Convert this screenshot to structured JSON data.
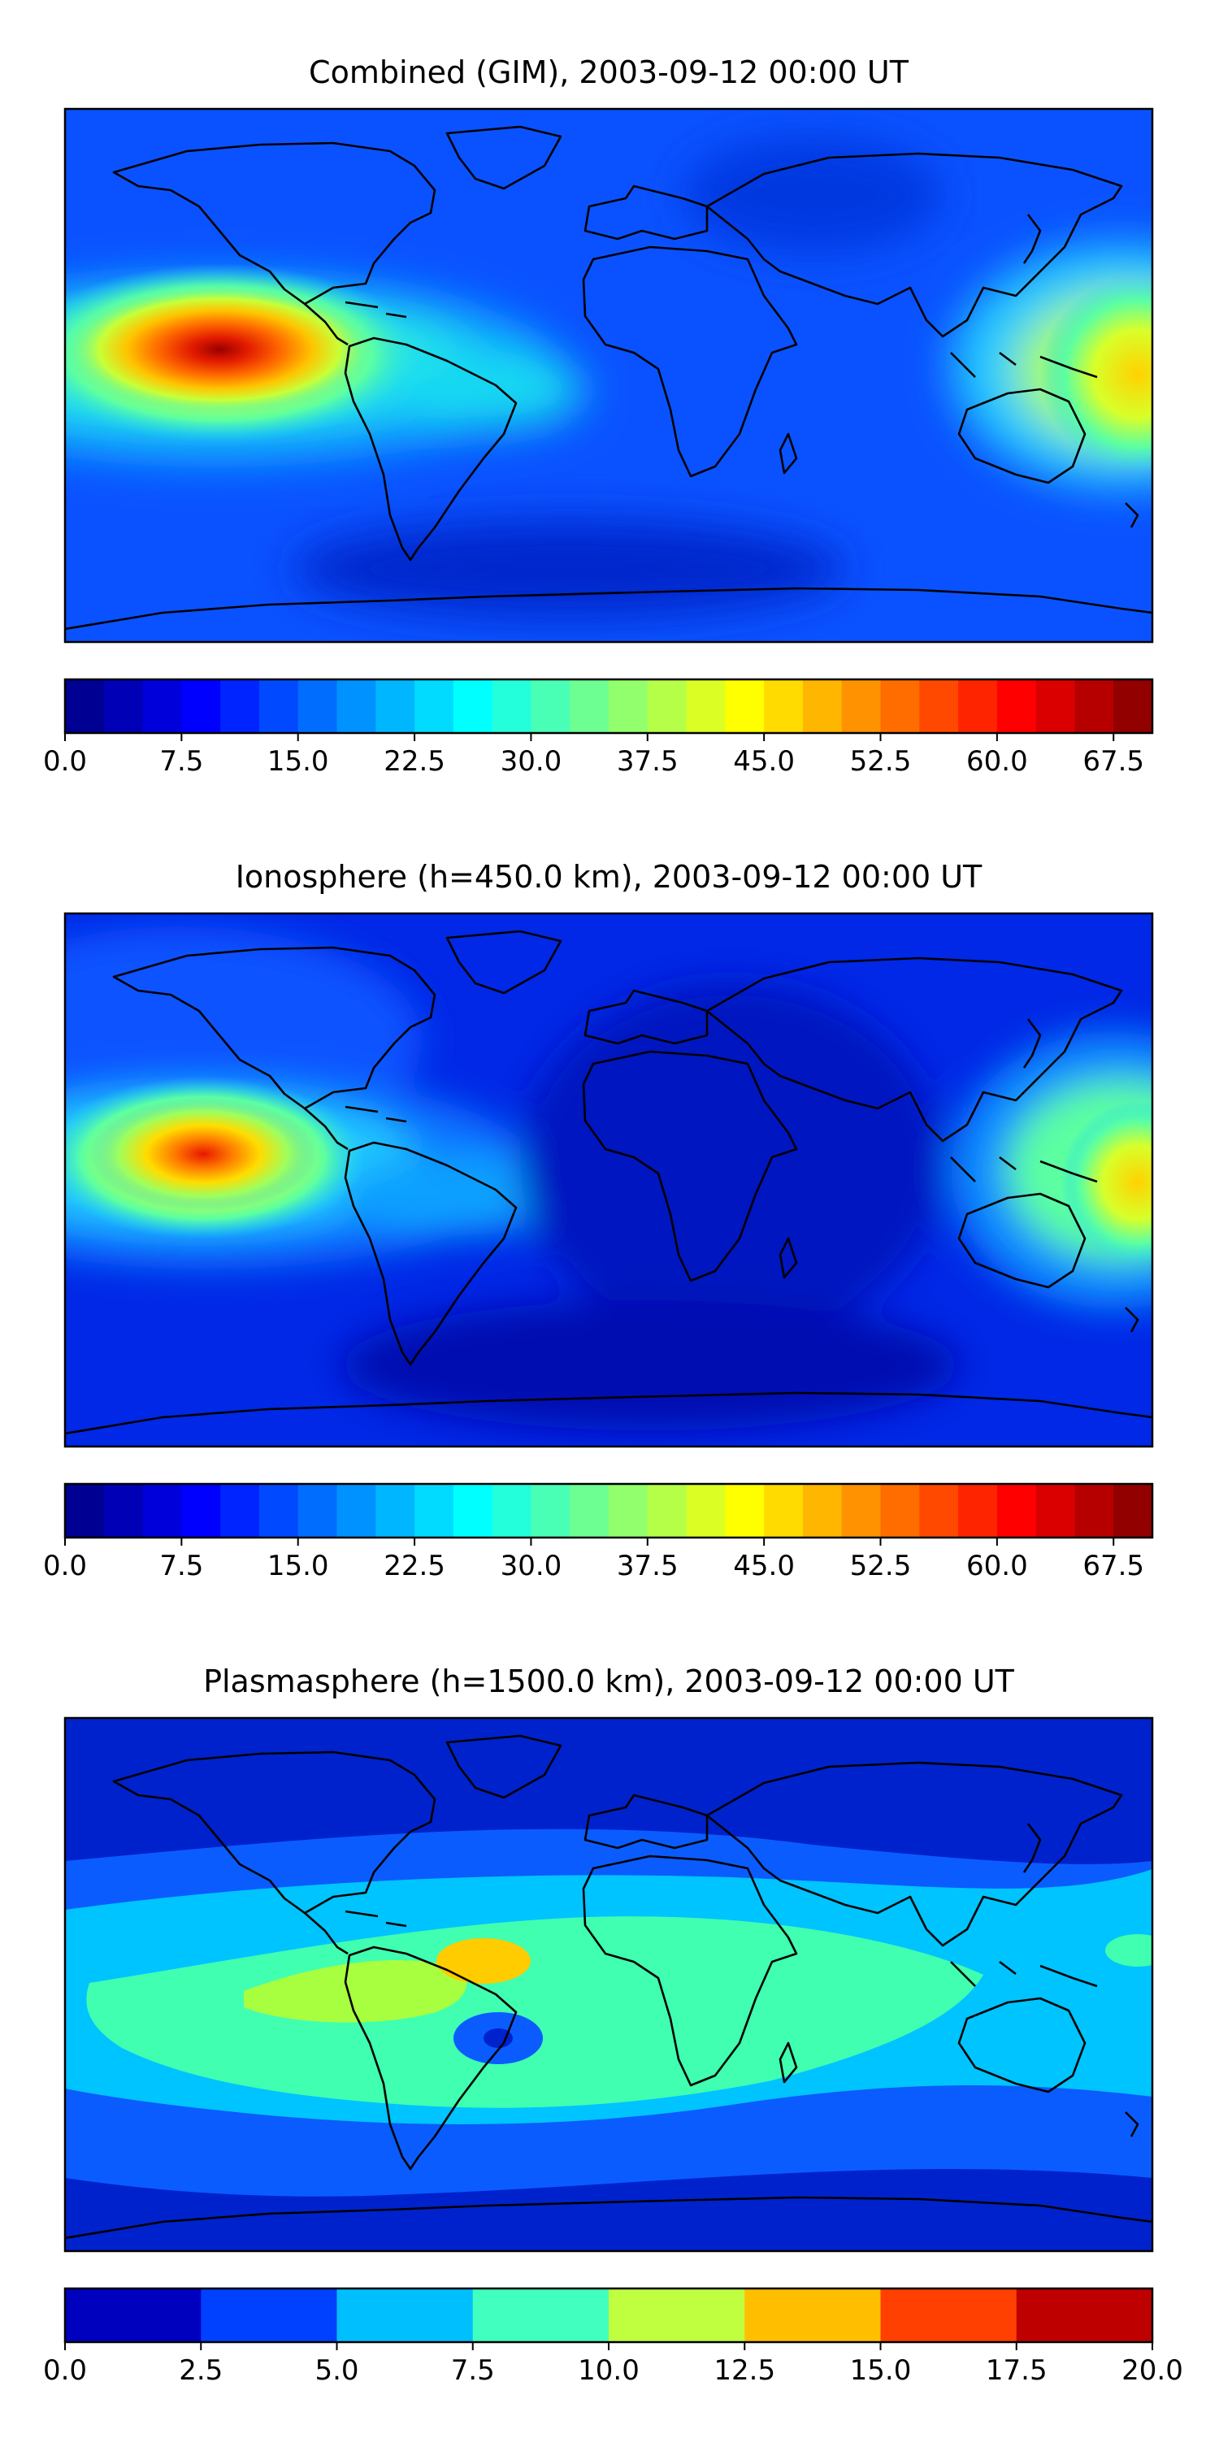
{
  "panels": [
    {
      "title": "Combined (GIM), 2003-09-12 00:00 UT",
      "colorbar": {
        "min": 0,
        "max": 70,
        "levels": 28,
        "ticks": [
          "0.0",
          "7.5",
          "15.0",
          "22.5",
          "30.0",
          "37.5",
          "45.0",
          "52.5",
          "60.0",
          "67.5"
        ]
      }
    },
    {
      "title": "Ionosphere  (h=450.0 km), 2003-09-12 00:00 UT",
      "colorbar": {
        "min": 0,
        "max": 70,
        "levels": 28,
        "ticks": [
          "0.0",
          "7.5",
          "15.0",
          "22.5",
          "30.0",
          "37.5",
          "45.0",
          "52.5",
          "60.0",
          "67.5"
        ]
      }
    },
    {
      "title": "Plasmasphere (h=1500.0 km), 2003-09-12 00:00 UT",
      "colorbar": {
        "min": 0,
        "max": 20,
        "levels": 8,
        "ticks": [
          "0.0",
          "2.5",
          "5.0",
          "7.5",
          "10.0",
          "12.5",
          "15.0",
          "17.5",
          "20.0"
        ]
      }
    }
  ],
  "colormap": "jet",
  "colors": {
    "background": "#ffffff",
    "coastline": "#000000"
  }
}
